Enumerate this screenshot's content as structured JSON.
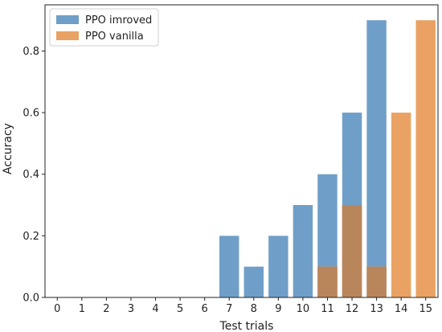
{
  "chart_data": {
    "type": "bar",
    "title": "",
    "xlabel": "Test trials",
    "ylabel": "Accuracy",
    "categories": [
      "0",
      "1",
      "2",
      "3",
      "4",
      "5",
      "6",
      "7",
      "8",
      "9",
      "10",
      "11",
      "12",
      "13",
      "14",
      "15"
    ],
    "series": [
      {
        "name": "PPO imroved",
        "color": "#6f9fc8",
        "values": [
          0,
          0,
          0,
          0,
          0,
          0,
          0,
          0.2,
          0.1,
          0.2,
          0.3,
          0.4,
          0.6,
          0.9,
          0,
          0
        ]
      },
      {
        "name": "PPO vanilla",
        "color": "#e9a263",
        "values": [
          0,
          0,
          0,
          0,
          0,
          0,
          0,
          0,
          0,
          0,
          0,
          0.1,
          0.3,
          0.1,
          0.6,
          0.9
        ]
      }
    ],
    "overlap_color": "#b9865c",
    "ylim": [
      0,
      0.95
    ],
    "yticks": [
      "0.0",
      "0.2",
      "0.4",
      "0.6",
      "0.8"
    ],
    "legend": "top-left",
    "grid": false
  }
}
